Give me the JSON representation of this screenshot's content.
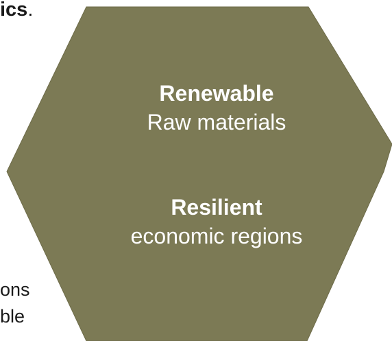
{
  "fragments": {
    "top_fragment": "ics",
    "top_fragment_punct": ".",
    "left_fragment_1": "ons",
    "left_fragment_2": "ble"
  },
  "hexagon": {
    "fill_color": "#7c7a55",
    "line1_bold": "Renewable",
    "line1_regular": "Raw materials",
    "line2_bold": "Resilient",
    "line2_regular": "economic regions"
  }
}
